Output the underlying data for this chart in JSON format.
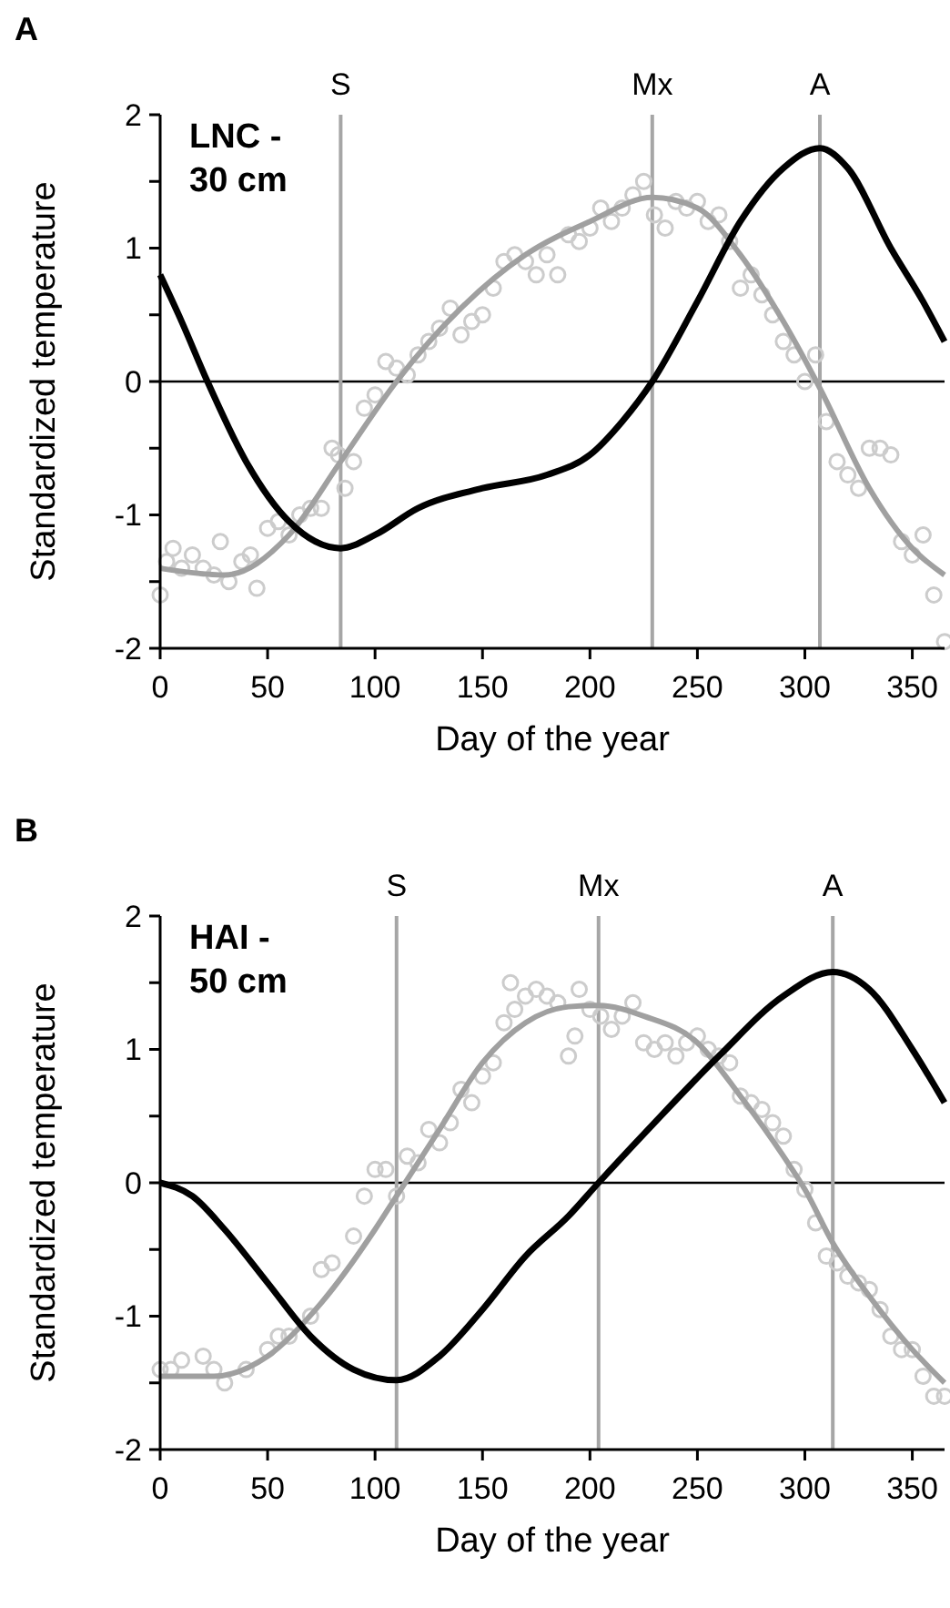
{
  "chart_data": [
    {
      "type": "line",
      "title": "A",
      "xlabel": "Day of the year",
      "ylabel": "Standardized temperature",
      "annotations": [
        "LNC - 30 cm"
      ],
      "xlim": [
        0,
        365
      ],
      "xticks": [
        0,
        50,
        100,
        150,
        200,
        250,
        300,
        350
      ],
      "ylim": [
        -2,
        2
      ],
      "yticks": [
        -2,
        {
          "value": -1.5,
          "label": null
        },
        -1,
        {
          "value": -0.5,
          "label": null
        },
        0,
        {
          "value": 0.5,
          "label": null
        },
        1,
        {
          "value": 1.5,
          "label": null
        },
        2
      ],
      "grid": false,
      "ref_lines": [
        {
          "axis": "y",
          "value": 0,
          "color": "#000000"
        },
        {
          "axis": "x",
          "value": 84,
          "label": "S",
          "color": "#a6a6a6"
        },
        {
          "axis": "x",
          "value": 229,
          "label": "Mx",
          "color": "#a6a6a6"
        },
        {
          "axis": "x",
          "value": 307,
          "label": "A",
          "color": "#a6a6a6"
        }
      ],
      "series": [
        {
          "type": "scatter",
          "marker": "circle",
          "color": "#cccccc",
          "x": [
            0,
            3,
            6,
            10,
            15,
            20,
            25,
            28,
            32,
            38,
            42,
            45,
            50,
            55,
            60,
            65,
            70,
            75,
            80,
            83,
            86,
            90,
            95,
            100,
            105,
            110,
            115,
            120,
            125,
            130,
            135,
            140,
            145,
            150,
            155,
            160,
            165,
            170,
            175,
            180,
            185,
            190,
            195,
            200,
            205,
            210,
            215,
            220,
            225,
            230,
            235,
            240,
            245,
            250,
            255,
            260,
            265,
            270,
            275,
            280,
            285,
            290,
            295,
            300,
            305,
            310,
            315,
            320,
            325,
            330,
            335,
            340,
            345,
            350,
            355,
            360,
            365
          ],
          "values": [
            -1.6,
            -1.35,
            -1.25,
            -1.4,
            -1.3,
            -1.4,
            -1.45,
            -1.2,
            -1.5,
            -1.35,
            -1.3,
            -1.55,
            -1.1,
            -1.05,
            -1.15,
            -1.0,
            -0.95,
            -0.95,
            -0.5,
            -0.55,
            -0.8,
            -0.6,
            -0.2,
            -0.1,
            0.15,
            0.1,
            0.05,
            0.2,
            0.3,
            0.4,
            0.55,
            0.35,
            0.45,
            0.5,
            0.7,
            0.9,
            0.95,
            0.9,
            0.8,
            0.95,
            0.8,
            1.1,
            1.05,
            1.15,
            1.3,
            1.2,
            1.3,
            1.4,
            1.5,
            1.25,
            1.15,
            1.35,
            1.3,
            1.35,
            1.2,
            1.25,
            1.05,
            0.7,
            0.8,
            0.65,
            0.5,
            0.3,
            0.2,
            0.0,
            0.2,
            -0.3,
            -0.6,
            -0.7,
            -0.8,
            -0.5,
            -0.5,
            -0.55,
            -1.2,
            -1.3,
            -1.15,
            -1.6,
            -1.95
          ]
        },
        {
          "type": "line",
          "color": "#a0a0a0",
          "x": [
            0,
            30,
            60,
            84,
            110,
            140,
            170,
            200,
            229,
            250,
            270,
            290,
            307,
            330,
            350,
            365
          ],
          "values": [
            -1.4,
            -1.45,
            -1.15,
            -0.6,
            0.0,
            0.55,
            0.95,
            1.2,
            1.38,
            1.3,
            0.95,
            0.45,
            -0.05,
            -0.8,
            -1.25,
            -1.45
          ]
        },
        {
          "type": "line",
          "color": "#000000",
          "x": [
            0,
            10,
            22,
            40,
            60,
            84,
            100,
            120,
            150,
            180,
            200,
            215,
            229,
            250,
            270,
            290,
            307,
            320,
            340,
            355,
            365
          ],
          "values": [
            0.8,
            0.45,
            0.0,
            -0.6,
            -1.05,
            -1.25,
            -1.15,
            -0.95,
            -0.8,
            -0.7,
            -0.55,
            -0.3,
            0.0,
            0.6,
            1.2,
            1.6,
            1.75,
            1.6,
            1.0,
            0.6,
            0.3
          ]
        }
      ]
    },
    {
      "type": "line",
      "title": "B",
      "xlabel": "Day of the year",
      "ylabel": "Standardized temperature",
      "annotations": [
        "HAI - 50 cm"
      ],
      "xlim": [
        0,
        365
      ],
      "xticks": [
        0,
        50,
        100,
        150,
        200,
        250,
        300,
        350
      ],
      "ylim": [
        -2,
        2
      ],
      "yticks": [
        -2,
        {
          "value": -1.5,
          "label": null
        },
        -1,
        {
          "value": -0.5,
          "label": null
        },
        0,
        {
          "value": 0.5,
          "label": null
        },
        1,
        {
          "value": 1.5,
          "label": null
        },
        2
      ],
      "grid": false,
      "ref_lines": [
        {
          "axis": "y",
          "value": 0,
          "color": "#000000"
        },
        {
          "axis": "x",
          "value": 110,
          "label": "S",
          "color": "#a6a6a6"
        },
        {
          "axis": "x",
          "value": 204,
          "label": "Mx",
          "color": "#a6a6a6"
        },
        {
          "axis": "x",
          "value": 313,
          "label": "A",
          "color": "#a6a6a6"
        }
      ],
      "series": [
        {
          "type": "scatter",
          "marker": "circle",
          "color": "#cccccc",
          "x": [
            0,
            5,
            10,
            20,
            25,
            30,
            40,
            50,
            55,
            60,
            70,
            75,
            80,
            90,
            95,
            100,
            105,
            110,
            115,
            120,
            125,
            130,
            135,
            140,
            145,
            150,
            155,
            160,
            163,
            165,
            170,
            175,
            180,
            185,
            190,
            193,
            195,
            200,
            205,
            210,
            215,
            220,
            225,
            230,
            235,
            240,
            245,
            250,
            255,
            260,
            265,
            270,
            275,
            280,
            285,
            290,
            295,
            300,
            305,
            310,
            315,
            320,
            325,
            330,
            335,
            340,
            345,
            350,
            355,
            360,
            365
          ],
          "values": [
            -1.4,
            -1.4,
            -1.33,
            -1.3,
            -1.4,
            -1.5,
            -1.4,
            -1.25,
            -1.15,
            -1.15,
            -1.0,
            -0.65,
            -0.6,
            -0.4,
            -0.1,
            0.1,
            0.1,
            -0.1,
            0.2,
            0.15,
            0.4,
            0.3,
            0.45,
            0.7,
            0.6,
            0.8,
            0.9,
            1.2,
            1.5,
            1.3,
            1.4,
            1.45,
            1.4,
            1.35,
            0.95,
            1.1,
            1.45,
            1.3,
            1.25,
            1.15,
            1.25,
            1.35,
            1.05,
            1.0,
            1.05,
            0.95,
            1.05,
            1.1,
            1.0,
            0.95,
            0.9,
            0.65,
            0.6,
            0.55,
            0.45,
            0.35,
            0.1,
            -0.05,
            -0.3,
            -0.55,
            -0.6,
            -0.7,
            -0.75,
            -0.8,
            -0.95,
            -1.15,
            -1.25,
            -1.25,
            -1.45,
            -1.6,
            -1.6
          ]
        },
        {
          "type": "line",
          "color": "#a0a0a0",
          "x": [
            0,
            25,
            50,
            75,
            100,
            110,
            130,
            150,
            170,
            190,
            204,
            225,
            250,
            270,
            290,
            300,
            313,
            330,
            350,
            365
          ],
          "values": [
            -1.45,
            -1.45,
            -1.3,
            -0.9,
            -0.35,
            -0.1,
            0.4,
            0.9,
            1.2,
            1.32,
            1.33,
            1.25,
            1.05,
            0.65,
            0.2,
            -0.05,
            -0.45,
            -0.85,
            -1.25,
            -1.5
          ]
        },
        {
          "type": "line",
          "color": "#000000",
          "x": [
            0,
            15,
            30,
            50,
            70,
            90,
            110,
            130,
            150,
            170,
            190,
            204,
            230,
            260,
            290,
            313,
            330,
            350,
            365
          ],
          "values": [
            0.0,
            -0.1,
            -0.35,
            -0.75,
            -1.15,
            -1.4,
            -1.48,
            -1.3,
            -0.95,
            -0.55,
            -0.25,
            0.0,
            0.45,
            0.95,
            1.4,
            1.58,
            1.45,
            1.0,
            0.6
          ]
        }
      ]
    }
  ]
}
